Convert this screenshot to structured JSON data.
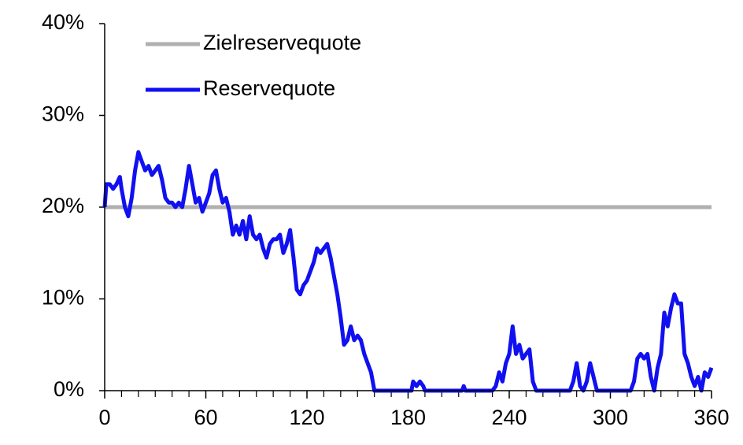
{
  "chart_data": {
    "type": "line",
    "xlim": [
      0,
      360
    ],
    "xticks": [
      0,
      60,
      120,
      180,
      240,
      300,
      360
    ],
    "ylim": [
      0,
      40
    ],
    "yticks": [
      {
        "value": 0,
        "label": "0%"
      },
      {
        "value": 10,
        "label": "10%"
      },
      {
        "value": 20,
        "label": "20%"
      },
      {
        "value": 30,
        "label": "30%"
      },
      {
        "value": 40,
        "label": "40%"
      }
    ],
    "legend": "upper left",
    "series": [
      {
        "name": "Zielreservequote",
        "color": "#b0b0b0",
        "x": [
          0,
          360
        ],
        "values": [
          20,
          20
        ]
      },
      {
        "name": "Reservequote",
        "color": "#1010f0",
        "x": [
          0,
          1,
          3,
          5,
          7,
          9,
          10,
          12,
          14,
          16,
          18,
          20,
          22,
          24,
          26,
          28,
          30,
          32,
          34,
          36,
          38,
          40,
          42,
          44,
          46,
          48,
          50,
          52,
          54,
          56,
          58,
          60,
          62,
          64,
          66,
          68,
          70,
          72,
          74,
          76,
          78,
          80,
          82,
          84,
          86,
          88,
          90,
          92,
          94,
          96,
          98,
          100,
          102,
          104,
          106,
          108,
          110,
          112,
          114,
          116,
          118,
          120,
          122,
          124,
          126,
          128,
          130,
          132,
          134,
          136,
          138,
          140,
          142,
          144,
          146,
          148,
          150,
          152,
          154,
          156,
          158,
          160,
          182,
          183,
          185,
          187,
          189,
          190,
          212,
          213,
          214,
          230,
          232,
          234,
          236,
          238,
          240,
          242,
          244,
          246,
          248,
          250,
          252,
          254,
          256,
          276,
          278,
          280,
          282,
          284,
          286,
          288,
          290,
          292,
          312,
          314,
          316,
          318,
          320,
          322,
          324,
          326,
          328,
          330,
          332,
          334,
          336,
          338,
          340,
          342,
          344,
          346,
          348,
          350,
          352,
          354,
          356,
          358,
          360
        ],
        "values": [
          20,
          22.5,
          22.5,
          22,
          22.5,
          23.3,
          22,
          20,
          19,
          21,
          24,
          26,
          25,
          24,
          24.5,
          23.5,
          24,
          24.5,
          23,
          21,
          20.5,
          20.5,
          20,
          20.5,
          20,
          22,
          24.5,
          22.5,
          20.5,
          21,
          19.5,
          20.5,
          21.5,
          23.5,
          24,
          22,
          20.5,
          21,
          19.5,
          17,
          18,
          17,
          18.5,
          16.5,
          19,
          17,
          16.5,
          17,
          15.5,
          14.5,
          16,
          16.5,
          16.5,
          17,
          15,
          16,
          17.5,
          14.5,
          11,
          10.5,
          11.5,
          12,
          13,
          14,
          15.5,
          15,
          15.5,
          16,
          14.5,
          12.5,
          10.5,
          8,
          5,
          5.5,
          7,
          5.5,
          6,
          5.5,
          4,
          3,
          2,
          0,
          0,
          1,
          0.5,
          1,
          0.5,
          0,
          0,
          0.5,
          0,
          0,
          0.5,
          2,
          1,
          3,
          4,
          7,
          4,
          5,
          3.5,
          4,
          4.5,
          1,
          0,
          0,
          1,
          3,
          0.5,
          0,
          1,
          3,
          1.5,
          0,
          0,
          1,
          3.5,
          4,
          3.5,
          4,
          1.5,
          0,
          2.5,
          4,
          8.5,
          7,
          9,
          10.5,
          9.5,
          9.5,
          4,
          3,
          1.5,
          0.5,
          1.5,
          0,
          2,
          1.5,
          2.5
        ]
      }
    ]
  }
}
